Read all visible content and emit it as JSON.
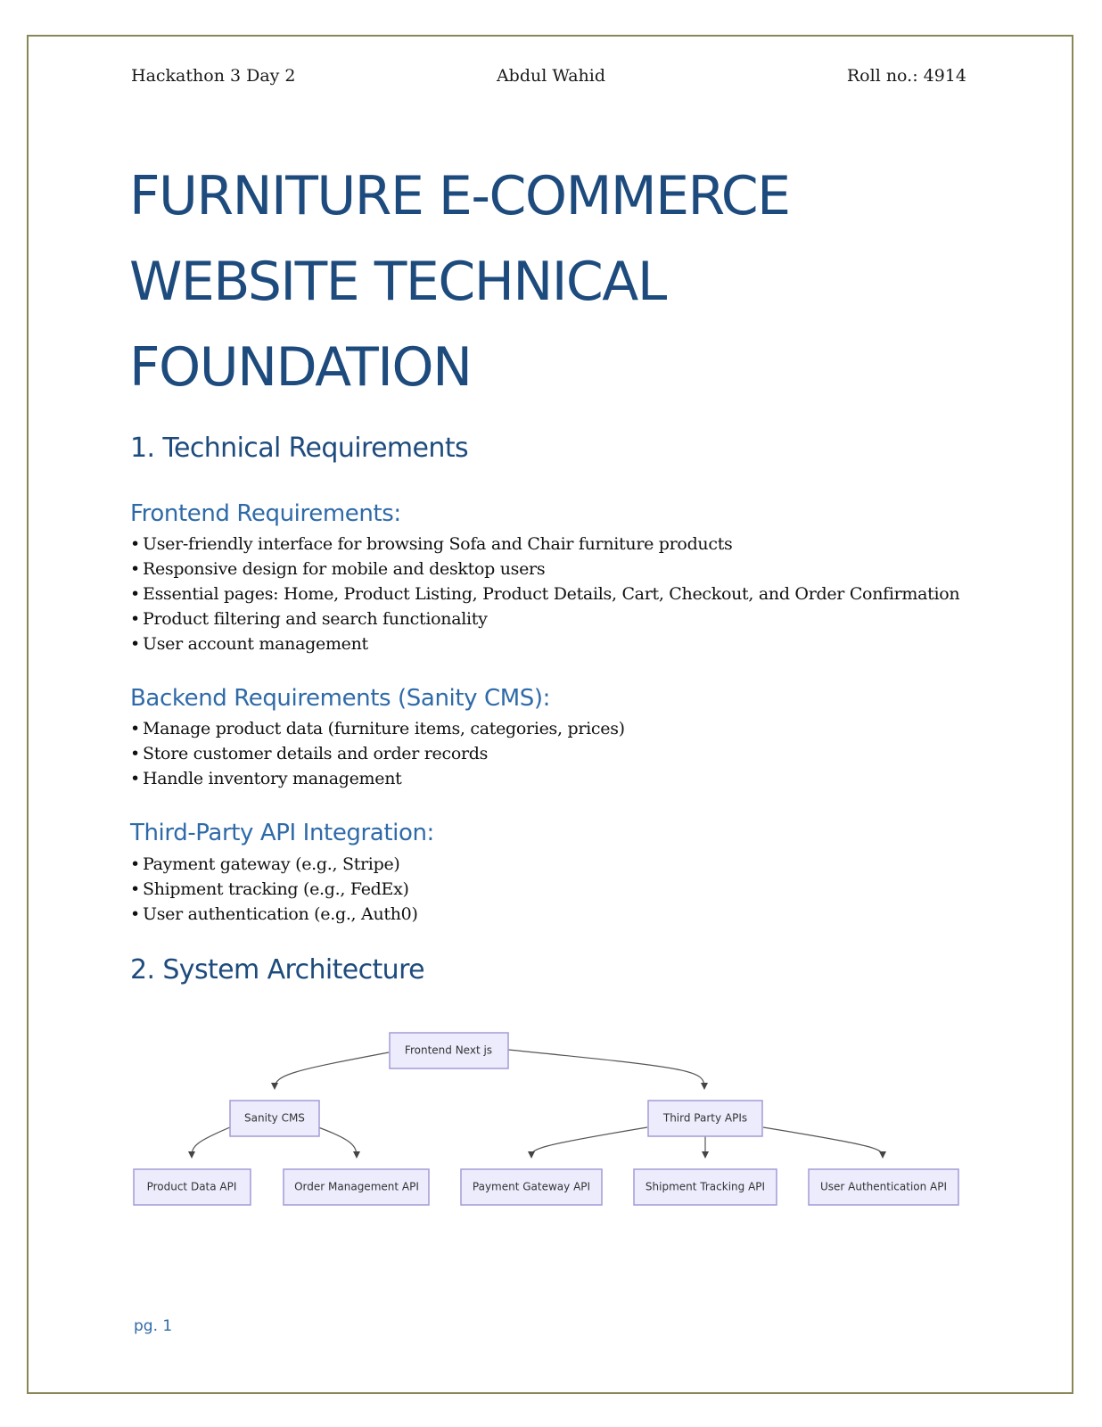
{
  "header": {
    "left": "Hackathon 3 Day 2",
    "center": "Abdul Wahid",
    "right": "Roll no.: 4914"
  },
  "title": {
    "line1": "FURNITURE E-COMMERCE",
    "line2": "WEBSITE TECHNICAL",
    "line3": "FOUNDATION"
  },
  "section1": {
    "heading": "1. Technical Requirements",
    "frontend": {
      "heading": "Frontend Requirements:",
      "items": [
        "User-friendly interface for browsing Sofa and Chair furniture products",
        "Responsive design for mobile and desktop users",
        "Essential pages: Home, Product Listing, Product Details, Cart, Checkout, and Order Confirmation",
        "Product filtering and search functionality",
        "User account management"
      ]
    },
    "backend": {
      "heading": "Backend Requirements (Sanity CMS):",
      "items": [
        "Manage product data (furniture items, categories, prices)",
        "Store customer details and order records",
        "Handle inventory management"
      ]
    },
    "thirdparty": {
      "heading": "Third-Party API Integration:",
      "items": [
        "Payment gateway (e.g., Stripe)",
        "Shipment tracking (e.g., FedEx)",
        "User authentication (e.g., Auth0)"
      ]
    }
  },
  "section2": {
    "heading": "2. System Architecture",
    "diagram": {
      "nodes": {
        "frontend": "Frontend Next js",
        "sanity": "Sanity CMS",
        "thirdparty": "Third Party APIs",
        "product_data": "Product Data API",
        "order_mgmt": "Order Management API",
        "payment": "Payment Gateway API",
        "shipment": "Shipment Tracking API",
        "auth": "User Authentication API"
      }
    }
  },
  "footer": {
    "page_number": "pg. 1"
  },
  "colors": {
    "title": "#1e4b7d",
    "subheading": "#2f6aa8",
    "border": "#8a8757",
    "node_fill": "#ececfd",
    "node_stroke": "#a39bd6"
  }
}
